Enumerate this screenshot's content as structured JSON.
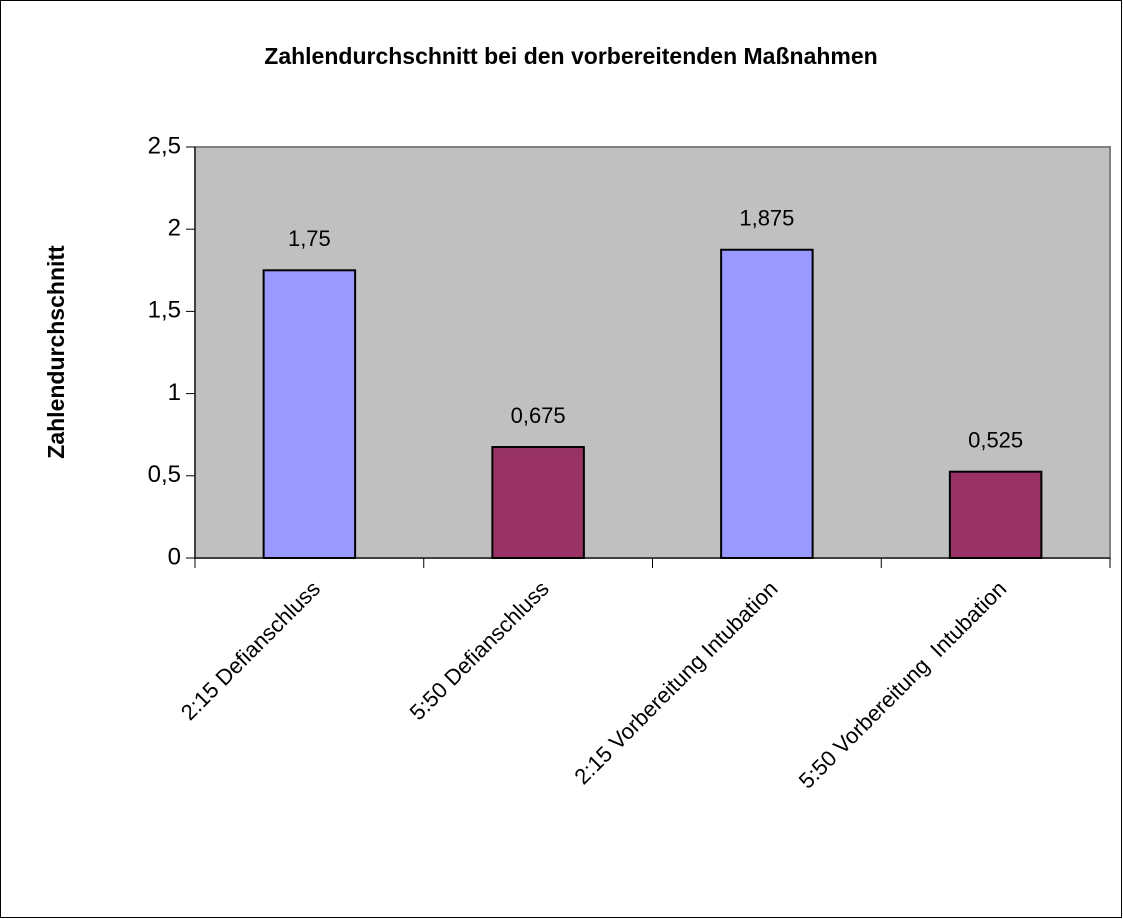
{
  "chart_data": {
    "type": "bar",
    "title": "Zahlendurchschnitt bei den vorbereitenden Maßnahmen",
    "y_label": "Zahlendurchschnitt",
    "categories": [
      "2:15 Defianschluss",
      "5:50 Defianschluss",
      "2:15 Vorbereitung Intubation",
      "5:50 Vorbereitung  Intubation"
    ],
    "values": [
      1.75,
      0.675,
      1.875,
      0.525
    ],
    "value_labels": [
      "1,75",
      "0,675",
      "1,875",
      "0,525"
    ],
    "colors": [
      "#9999ff",
      "#993366",
      "#9999ff",
      "#993366"
    ],
    "ylim": [
      0,
      2.5
    ],
    "yticks": [
      0,
      {
        "value": 0.5,
        "label": "0,5"
      },
      1,
      {
        "value": 1.5,
        "label": "1,5"
      },
      2,
      {
        "value": 2.5,
        "label": "2,5"
      }
    ],
    "plot_background": "#c0c0c0"
  }
}
